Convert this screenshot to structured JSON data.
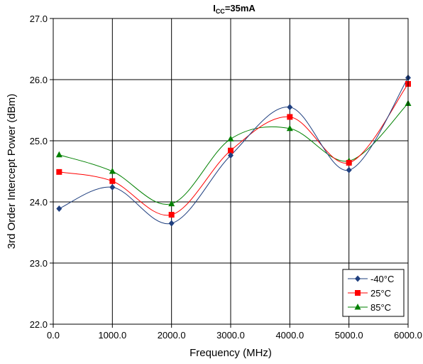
{
  "chart_data": {
    "type": "line",
    "title_main": "I",
    "title_sub": "CC",
    "title_rest": "=35mA",
    "xlabel": "Frequency (MHz)",
    "ylabel": "3rd Order Intercept Power (dBm)",
    "xlim": [
      0,
      6000
    ],
    "ylim": [
      22.0,
      27.0
    ],
    "x_ticks": [
      0,
      1000,
      2000,
      3000,
      4000,
      5000,
      6000
    ],
    "x_tick_labels": [
      "0.0",
      "1000.0",
      "2000.0",
      "3000.0",
      "4000.0",
      "5000.0",
      "6000.0"
    ],
    "y_ticks": [
      22.0,
      23.0,
      24.0,
      25.0,
      26.0,
      27.0
    ],
    "y_tick_labels": [
      "22.0",
      "23.0",
      "24.0",
      "25.0",
      "26.0",
      "27.0"
    ],
    "grid": true,
    "legend_position": "bottom-right",
    "x": [
      100,
      1000,
      2000,
      3000,
      4000,
      5000,
      6000
    ],
    "series": [
      {
        "name": "-40°C",
        "color": "#1f3f7f",
        "marker": "diamond",
        "values": [
          23.89,
          24.24,
          23.65,
          24.76,
          25.55,
          24.52,
          26.03
        ]
      },
      {
        "name": "25°C",
        "color": "#ff0000",
        "marker": "square",
        "values": [
          24.49,
          24.34,
          23.79,
          24.84,
          25.39,
          24.64,
          25.93
        ]
      },
      {
        "name": "85°C",
        "color": "#008000",
        "marker": "triangle",
        "values": [
          24.77,
          24.5,
          23.97,
          25.03,
          25.2,
          24.67,
          25.61
        ]
      }
    ]
  }
}
